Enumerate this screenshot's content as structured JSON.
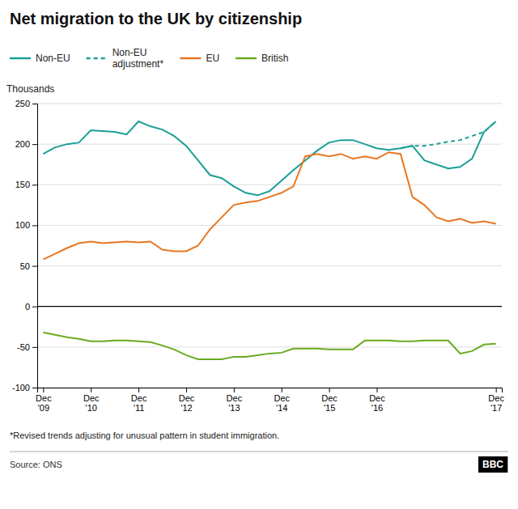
{
  "chart_data": {
    "type": "line",
    "title": "Net migration to the UK by citizenship",
    "ylabel": "Thousands",
    "footnote": "*Revised trends adjusting for unusual pattern in student immigration.",
    "source": "Source: ONS",
    "annotations": [
      "BBC"
    ],
    "categories": [
      "Dec\n'09",
      null,
      null,
      null,
      "Dec\n'10",
      null,
      null,
      null,
      "Dec\n'11",
      null,
      null,
      null,
      "Dec\n'12",
      null,
      null,
      null,
      "Dec\n'13",
      null,
      null,
      null,
      "Dec\n'14",
      null,
      null,
      null,
      "Dec\n'15",
      null,
      null,
      null,
      "Dec\n'16",
      null,
      null,
      null,
      null,
      null,
      null,
      null,
      null,
      null,
      "Dec\n'17"
    ],
    "series": [
      {
        "name": "Non-EU",
        "color": "#1a9e96",
        "line_style": "solid",
        "values": [
          188,
          196,
          200,
          202,
          217,
          216,
          215,
          212,
          228,
          222,
          218,
          210,
          198,
          180,
          162,
          158,
          148,
          140,
          137,
          142,
          155,
          168,
          180,
          192,
          202,
          205,
          205,
          200,
          195,
          193,
          195,
          198,
          180,
          175,
          170,
          172,
          182,
          215,
          228
        ]
      },
      {
        "name": "Non-EU\nadjustment*",
        "color": "#1a9e96",
        "line_style": "dashed",
        "values": [
          null,
          null,
          null,
          null,
          null,
          null,
          null,
          null,
          null,
          null,
          null,
          null,
          null,
          null,
          null,
          null,
          null,
          null,
          null,
          null,
          null,
          null,
          null,
          null,
          null,
          null,
          null,
          null,
          null,
          null,
          195,
          198,
          198,
          200,
          203,
          205,
          210,
          215,
          228
        ]
      },
      {
        "name": "EU",
        "color": "#e87722",
        "line_style": "solid",
        "values": [
          58,
          65,
          72,
          78,
          80,
          78,
          79,
          80,
          79,
          80,
          70,
          68,
          68,
          75,
          95,
          110,
          125,
          128,
          130,
          135,
          140,
          148,
          185,
          188,
          185,
          188,
          182,
          185,
          182,
          190,
          188,
          135,
          125,
          110,
          105,
          108,
          103,
          105,
          102
        ]
      },
      {
        "name": "British",
        "color": "#6aaa1f",
        "line_style": "solid",
        "values": [
          -32,
          -35,
          -38,
          -40,
          -43,
          -43,
          -42,
          -42,
          -43,
          -44,
          -48,
          -53,
          -60,
          -65,
          -65,
          -65,
          -62,
          -62,
          -60,
          -58,
          -57,
          -52,
          -52,
          -52,
          -53,
          -53,
          -53,
          -42,
          -42,
          -42,
          -43,
          -43,
          -42,
          -42,
          -42,
          -58,
          -55,
          -47,
          -46
        ]
      }
    ],
    "ylim": [
      -100,
      250
    ],
    "yticks": [
      -100,
      -50,
      0,
      50,
      100,
      150,
      200,
      250
    ],
    "grid": true,
    "legend": "top"
  }
}
